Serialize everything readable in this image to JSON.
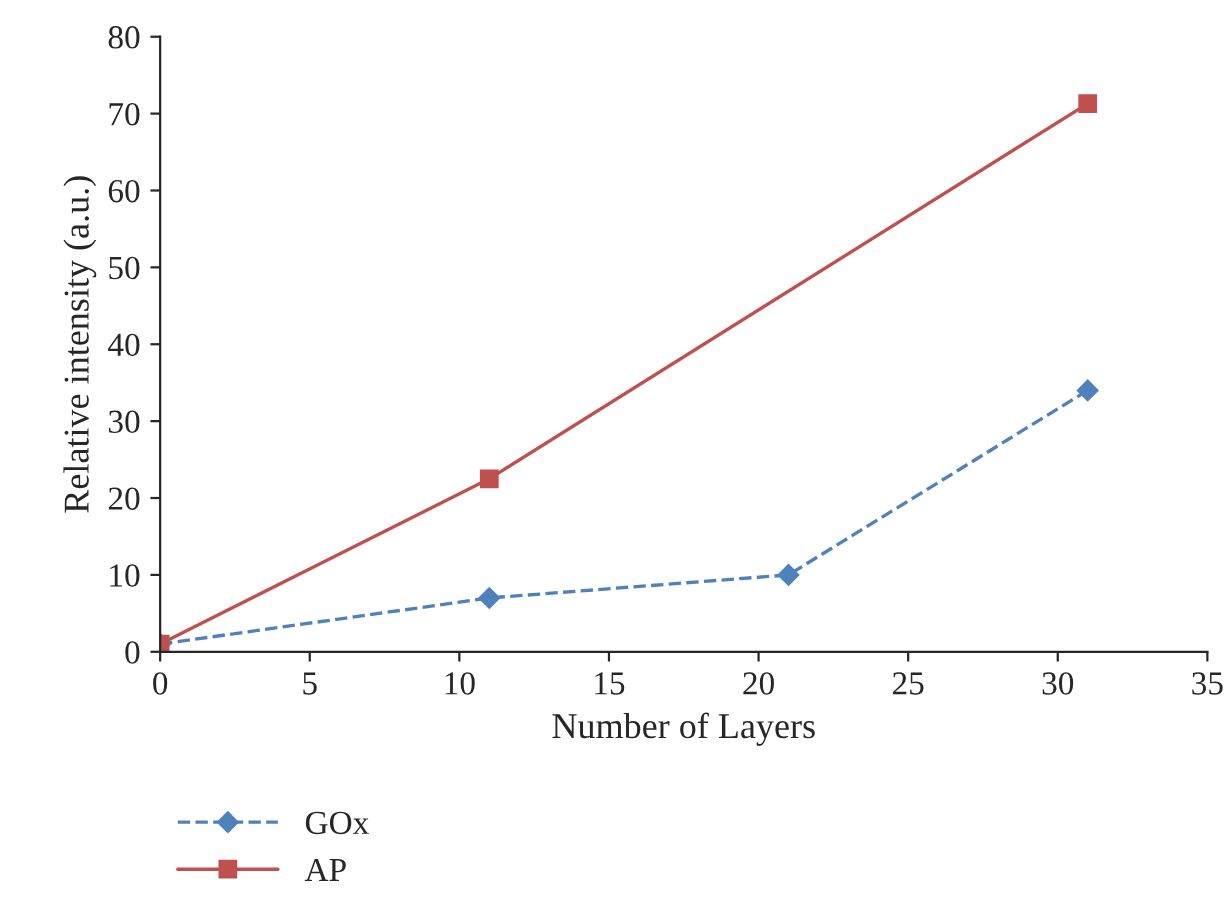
{
  "chart_data": {
    "type": "line",
    "xlabel": "Number of Layers",
    "ylabel": "Relative intensity (a.u.)",
    "xlim": [
      0,
      35
    ],
    "xticks": [
      0,
      5,
      10,
      15,
      20,
      25,
      30,
      35
    ],
    "ylim": [
      0,
      80
    ],
    "yticks": [
      0,
      10,
      20,
      30,
      40,
      50,
      60,
      70,
      80
    ],
    "grid": false,
    "legend": "bottom",
    "series": [
      {
        "name": "GOx",
        "color": "#4f81bd",
        "marker": "diamond",
        "line_style": "dashed",
        "x": [
          0,
          11,
          21,
          31
        ],
        "values": [
          1,
          7,
          10,
          34
        ]
      },
      {
        "name": "AP",
        "color": "#c0504d",
        "marker": "square",
        "line_style": "solid",
        "x": [
          0,
          11,
          31
        ],
        "values": [
          1,
          22.5,
          71.3
        ]
      }
    ]
  }
}
